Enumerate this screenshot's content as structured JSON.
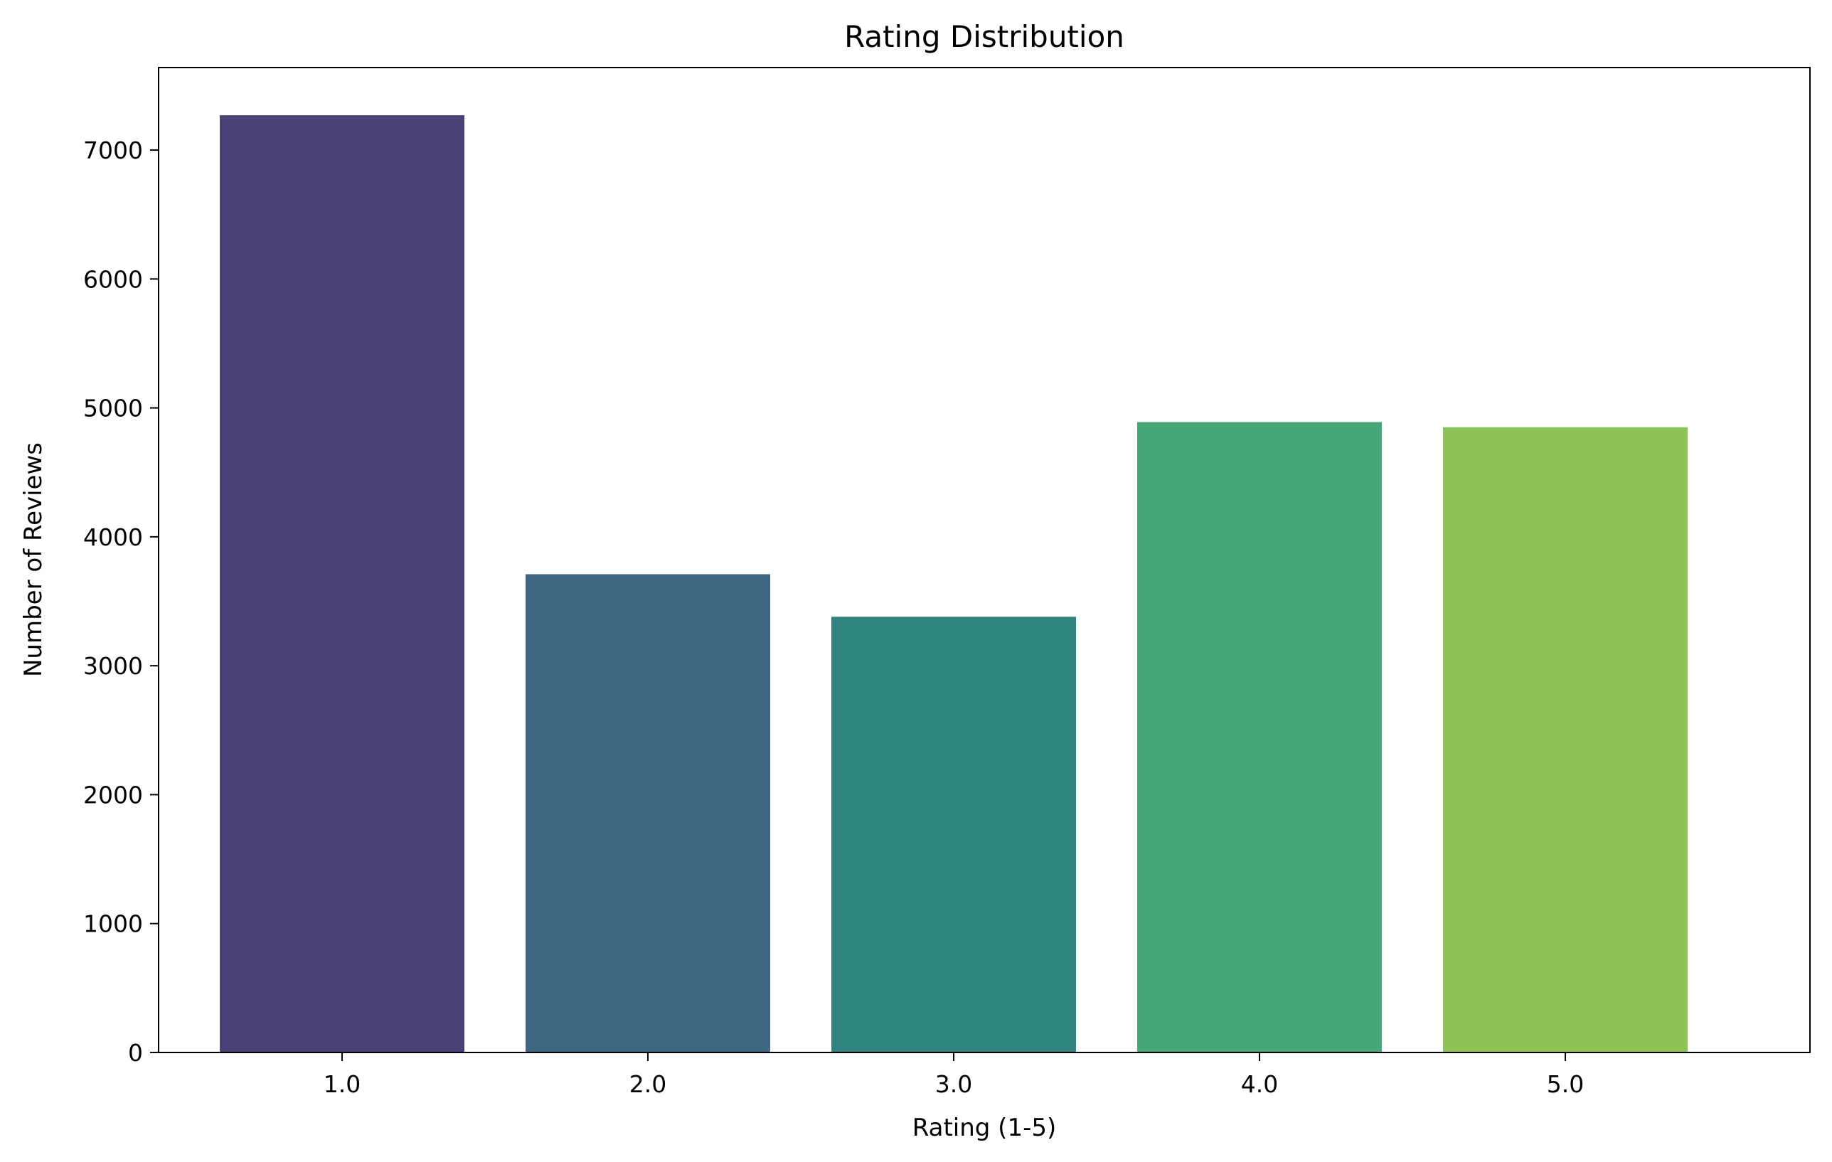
{
  "chart_data": {
    "type": "bar",
    "title": "Rating Distribution",
    "xlabel": "Rating (1-5)",
    "ylabel": "Number of Reviews",
    "categories": [
      "1.0",
      "2.0",
      "3.0",
      "4.0",
      "5.0"
    ],
    "values": [
      7270,
      3710,
      3380,
      4890,
      4850
    ],
    "colors": [
      "#4a4176",
      "#3f6781",
      "#2f847f",
      "#47a778",
      "#8dc456"
    ],
    "ylim": [
      0,
      7640
    ],
    "yticks": [
      0,
      1000,
      2000,
      3000,
      4000,
      5000,
      6000,
      7000
    ],
    "ytick_labels": [
      "0",
      "1000",
      "2000",
      "3000",
      "4000",
      "5000",
      "6000",
      "7000"
    ],
    "grid": false,
    "legend": "none"
  }
}
